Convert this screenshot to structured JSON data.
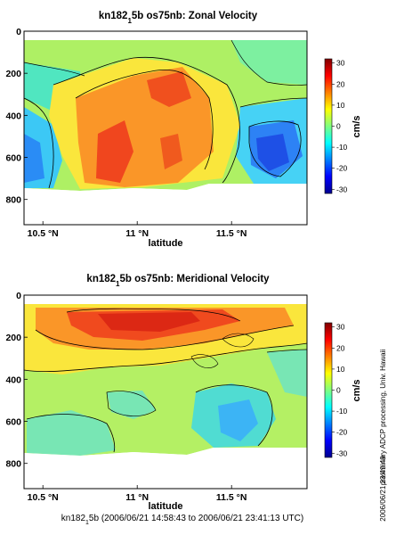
{
  "chart_data": [
    {
      "type": "heatmap",
      "title_main": "kn182",
      "title_sub": "1",
      "title_rest": "5b os75nb: Zonal Velocity",
      "xlabel": "latitude",
      "xlim": [
        10.4,
        11.9
      ],
      "ylim": [
        920,
        0
      ],
      "x_ticks": [
        10.5,
        11,
        11.5
      ],
      "x_tick_labels": [
        "10.5 °N",
        "11 °N",
        "11.5 °N"
      ],
      "y_ticks": [
        0,
        200,
        400,
        600,
        800
      ],
      "y_tick_labels": [
        "0",
        "200",
        "400",
        "600",
        "800"
      ],
      "colorbar": {
        "label": "cm/s",
        "range": [
          -32,
          32
        ],
        "ticks": [
          30,
          20,
          10,
          0,
          -10,
          -20,
          -30
        ],
        "tick_labels": [
          "30",
          "20",
          "10",
          "0",
          "-10",
          "-20",
          "-30"
        ]
      },
      "field_description": "Eastward flow maximum (20-30 cm/s) centred near 10.9-11.2 N between 200-650 m; westward flow (-10 to -20 cm/s) near 11.65 N at 550-650 m and near 10.45 N below 500 m; data gap below about 730 m"
    },
    {
      "type": "heatmap",
      "title_main": "kn182",
      "title_sub": "1",
      "title_rest": "5b os75nb: Meridional Velocity",
      "xlabel": "latitude",
      "xlim": [
        10.4,
        11.9
      ],
      "ylim": [
        920,
        0
      ],
      "x_ticks": [
        10.5,
        11,
        11.5
      ],
      "x_tick_labels": [
        "10.5 °N",
        "11 °N",
        "11.5 °N"
      ],
      "y_ticks": [
        0,
        200,
        400,
        600,
        800
      ],
      "y_tick_labels": [
        "0",
        "200",
        "400",
        "600",
        "800"
      ],
      "colorbar": {
        "label": "cm/s",
        "range": [
          -32,
          32
        ],
        "ticks": [
          30,
          20,
          10,
          0,
          -10,
          -20,
          -30
        ],
        "tick_labels": [
          "30",
          "20",
          "10",
          "0",
          "-10",
          "-20",
          "-30"
        ]
      },
      "field_description": "Northward flow maximum (25-30 cm/s) in the upper 250 m centred near 10.9-11.2 N, weakening with depth to near zero; weak southward flow (-5 to -15 cm/s) near 11.5-11.6 N between 450-650 m; data gap below about 730 m"
    }
  ],
  "footer_main": "kn182",
  "footer_sub": "1",
  "footer_rest": "5b (2006/06/21 14:58:43 to 2006/06/21 23:41:13 UTC)",
  "side_note_1": "preliminary ADCP processing,  Univ. Hawaii",
  "side_note_2": "2006/06/21 23:49:49"
}
